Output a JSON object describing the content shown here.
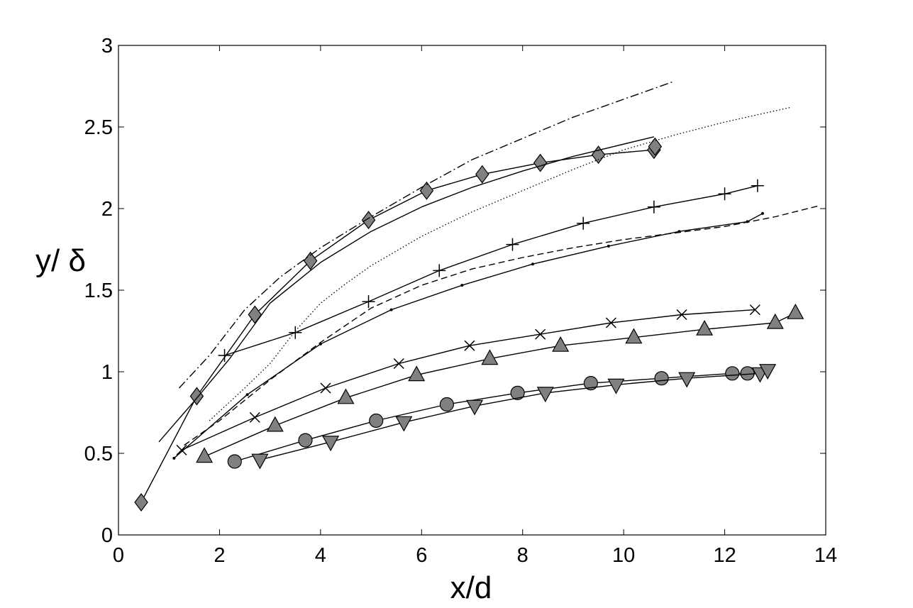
{
  "chart_data": {
    "type": "line",
    "title": "",
    "xlabel": "x/d",
    "ylabel": "y/ δ",
    "xlim": [
      0,
      14
    ],
    "ylim": [
      0,
      3
    ],
    "x_ticks": [
      "0",
      "2",
      "4",
      "6",
      "8",
      "10",
      "12",
      "14"
    ],
    "y_ticks": [
      "0",
      "0.5",
      "1",
      "1.5",
      "2",
      "2.5",
      "3"
    ],
    "grid": false,
    "legend": "none",
    "series": [
      {
        "marker": "diamond",
        "line": "solid",
        "color": "#808080",
        "x": [
          0.45,
          1.55,
          2.7,
          3.8,
          4.95,
          6.1,
          7.2,
          8.35,
          9.5,
          10.6,
          10.62
        ],
        "y": [
          0.2,
          0.85,
          1.35,
          1.68,
          1.93,
          2.11,
          2.21,
          2.28,
          2.33,
          2.36,
          2.38
        ]
      },
      {
        "marker": "none",
        "line": "solid",
        "color": "#000000",
        "x": [
          0.8,
          1.5,
          2.2,
          3.0,
          4.0,
          5.0,
          6.0,
          7.0,
          8.0,
          9.0,
          10.6
        ],
        "y": [
          0.57,
          0.82,
          1.08,
          1.42,
          1.67,
          1.86,
          2.01,
          2.13,
          2.23,
          2.32,
          2.44
        ]
      },
      {
        "marker": "none",
        "line": "dashdot",
        "color": "#000000",
        "x": [
          1.2,
          1.8,
          2.5,
          3.2,
          4.0,
          5.0,
          6.0,
          7.0,
          8.0,
          9.0,
          10.0,
          11.0
        ],
        "y": [
          0.9,
          1.1,
          1.38,
          1.58,
          1.76,
          1.95,
          2.13,
          2.3,
          2.43,
          2.56,
          2.67,
          2.78
        ]
      },
      {
        "marker": "none",
        "line": "dotted",
        "color": "#000000",
        "x": [
          1.8,
          2.5,
          3.0,
          3.5,
          4.0,
          4.5,
          5.0,
          6.0,
          7.0,
          8.0,
          9.0,
          10.0,
          11.0,
          12.0,
          13.3
        ],
        "y": [
          0.7,
          0.9,
          1.05,
          1.25,
          1.42,
          1.54,
          1.65,
          1.83,
          1.98,
          2.11,
          2.24,
          2.36,
          2.45,
          2.53,
          2.62
        ]
      },
      {
        "marker": "plus",
        "line": "solid",
        "color": "#000000",
        "x": [
          2.1,
          3.5,
          4.95,
          6.35,
          7.8,
          9.2,
          10.6,
          12.0,
          12.65
        ],
        "y": [
          1.1,
          1.24,
          1.43,
          1.62,
          1.78,
          1.91,
          2.01,
          2.09,
          2.14
        ]
      },
      {
        "marker": "none",
        "line": "dashed",
        "color": "#000000",
        "x": [
          1.3,
          2.0,
          3.0,
          4.0,
          5.0,
          6.0,
          7.0,
          8.0,
          9.0,
          10.0,
          11.0,
          12.0,
          13.0,
          13.9
        ],
        "y": [
          0.55,
          0.7,
          0.95,
          1.18,
          1.39,
          1.53,
          1.63,
          1.7,
          1.76,
          1.81,
          1.85,
          1.89,
          1.95,
          2.02
        ]
      },
      {
        "marker": "dot",
        "line": "solid",
        "color": "#000000",
        "x": [
          1.1,
          2.55,
          4.0,
          5.4,
          6.8,
          8.2,
          9.7,
          11.1,
          12.45,
          12.75
        ],
        "y": [
          0.47,
          0.86,
          1.17,
          1.38,
          1.53,
          1.66,
          1.77,
          1.86,
          1.92,
          1.97
        ]
      },
      {
        "marker": "x",
        "line": "solid",
        "color": "#000000",
        "x": [
          1.25,
          2.7,
          4.1,
          5.55,
          6.95,
          8.35,
          9.75,
          11.15,
          12.6
        ],
        "y": [
          0.52,
          0.72,
          0.9,
          1.05,
          1.16,
          1.23,
          1.3,
          1.35,
          1.38
        ]
      },
      {
        "marker": "triangle-up",
        "line": "solid",
        "color": "#808080",
        "x": [
          1.7,
          3.1,
          4.5,
          5.9,
          7.35,
          8.75,
          10.2,
          11.6,
          13.0,
          13.4
        ],
        "y": [
          0.48,
          0.67,
          0.84,
          0.98,
          1.08,
          1.16,
          1.21,
          1.26,
          1.3,
          1.36
        ]
      },
      {
        "marker": "circle",
        "line": "solid",
        "color": "#808080",
        "x": [
          2.3,
          3.7,
          5.1,
          6.5,
          7.9,
          9.35,
          10.75,
          12.15,
          12.45
        ],
        "y": [
          0.45,
          0.58,
          0.7,
          0.8,
          0.87,
          0.93,
          0.96,
          0.99,
          0.99
        ]
      },
      {
        "marker": "triangle-down",
        "line": "solid",
        "color": "#808080",
        "x": [
          2.8,
          4.2,
          5.65,
          7.05,
          8.45,
          9.85,
          11.25,
          12.7,
          12.85
        ],
        "y": [
          0.46,
          0.57,
          0.69,
          0.79,
          0.87,
          0.92,
          0.96,
          0.99,
          1.01
        ]
      }
    ]
  }
}
